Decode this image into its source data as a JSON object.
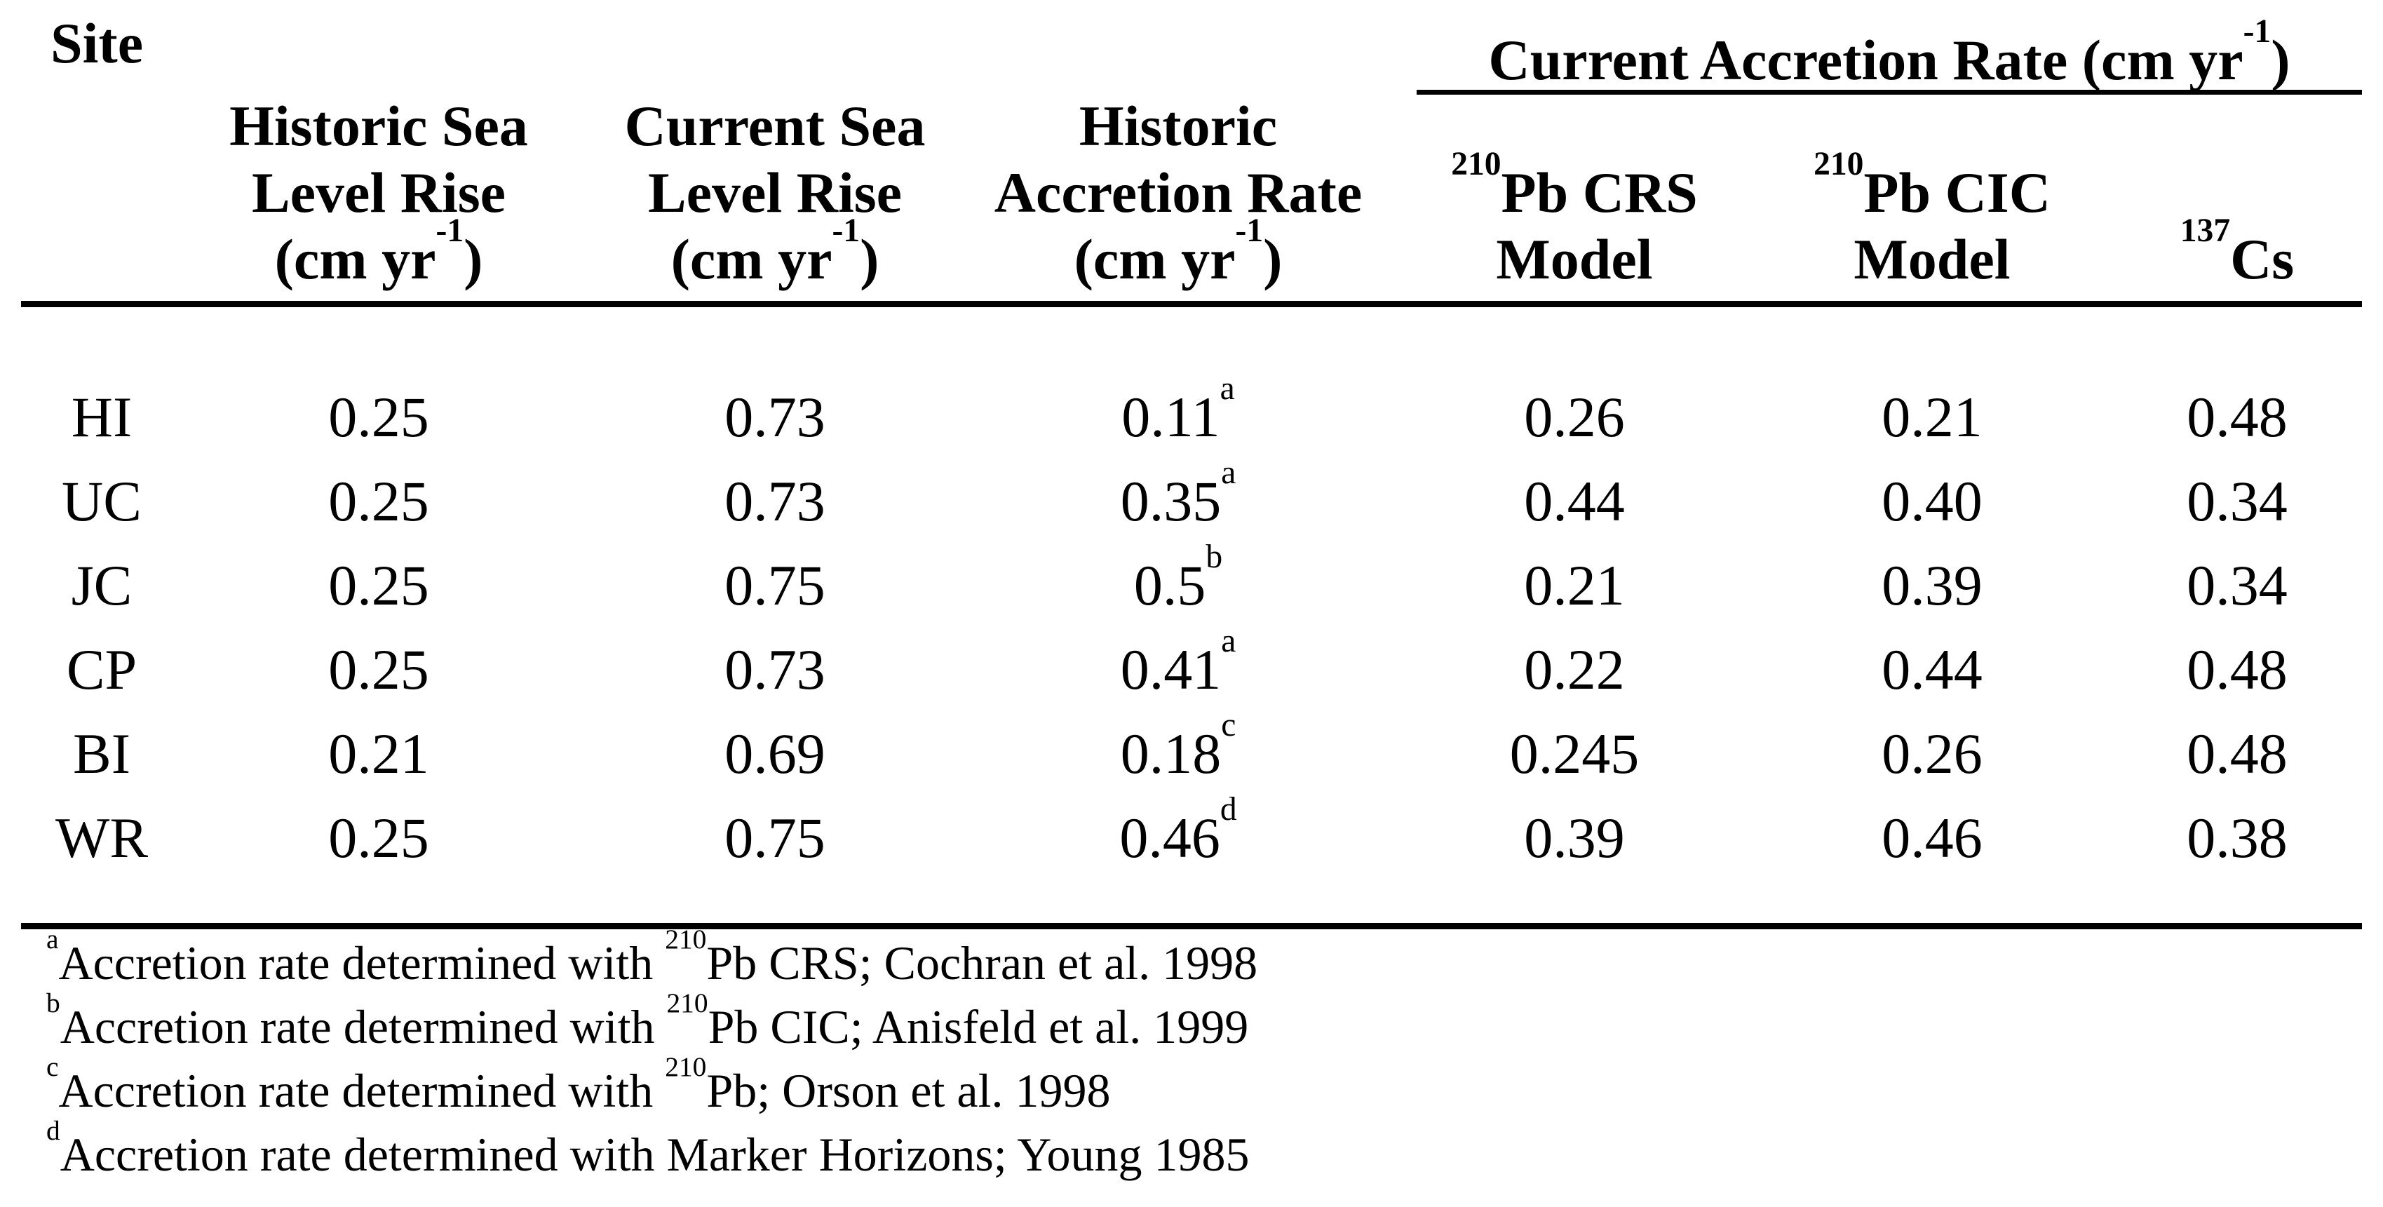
{
  "page": {
    "background": "#ffffff",
    "text_color": "#000000",
    "rule_color": "#000000"
  },
  "table": {
    "site_header": "Site",
    "span_header": "Current Accretion Rate (cm yr{-1})",
    "columns": [
      {
        "name": "historic_sea_level_rise",
        "lines": [
          "Historic Sea",
          "Level Rise",
          "(cm yr{-1})"
        ]
      },
      {
        "name": "current_sea_level_rise",
        "lines": [
          "Current Sea",
          "Level Rise",
          "(cm yr{-1})"
        ]
      },
      {
        "name": "historic_accretion_rate",
        "lines": [
          "Historic",
          "Accretion Rate",
          "(cm yr{-1})"
        ]
      },
      {
        "name": "pb210_crs_model",
        "lines": [
          "{210}Pb CRS",
          "Model"
        ]
      },
      {
        "name": "pb210_cic_model",
        "lines": [
          "{210}Pb CIC",
          "Model"
        ]
      },
      {
        "name": "cs137",
        "lines": [
          "{137}Cs"
        ]
      }
    ],
    "rows": [
      {
        "site": "HI",
        "values": [
          "0.25",
          "0.73",
          "0.11{a}",
          "0.26",
          "0.21",
          "0.48"
        ]
      },
      {
        "site": "UC",
        "values": [
          "0.25",
          "0.73",
          "0.35{a}",
          "0.44",
          "0.40",
          "0.34"
        ]
      },
      {
        "site": "JC",
        "values": [
          "0.25",
          "0.75",
          "0.5{b}",
          "0.21",
          "0.39",
          "0.34"
        ]
      },
      {
        "site": "CP",
        "values": [
          "0.25",
          "0.73",
          "0.41{a}",
          "0.22",
          "0.44",
          "0.48"
        ]
      },
      {
        "site": "BI",
        "values": [
          "0.21",
          "0.69",
          "0.18{c}",
          "0.245",
          "0.26",
          "0.48"
        ]
      },
      {
        "site": "WR",
        "values": [
          "0.25",
          "0.75",
          "0.46{d}",
          "0.39",
          "0.46",
          "0.38"
        ]
      }
    ],
    "footnotes": [
      "{a}Accretion rate determined with {210}Pb CRS; Cochran et al. 1998",
      "{b}Accretion rate determined with {210}Pb CIC; Anisfeld et al. 1999",
      "{c}Accretion rate determined with {210}Pb; Orson et al. 1998",
      "{d}Accretion rate determined with Marker Horizons; Young 1985"
    ]
  }
}
